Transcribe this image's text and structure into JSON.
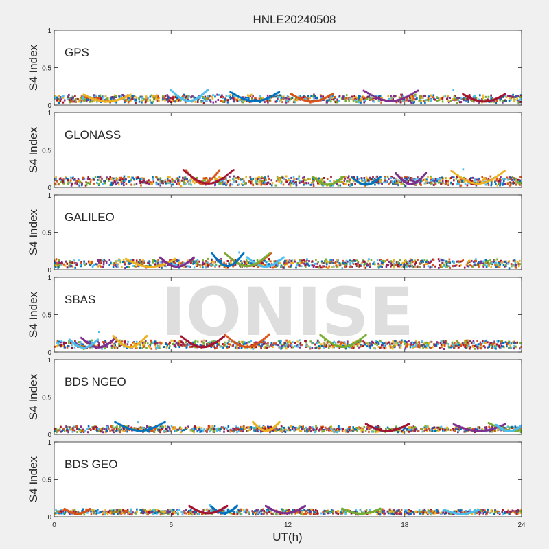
{
  "figure": {
    "title": "HNLE20240508",
    "xlabel": "UT(h)",
    "watermark": "IONISE"
  },
  "colors": {
    "background": "#f0f0f0",
    "axes_bg": "#ffffff",
    "axis": "#262626",
    "watermark": "#dedede",
    "series": [
      "#0072BD",
      "#D95319",
      "#EDB120",
      "#7E2F8E",
      "#77AC30",
      "#4DBEEE",
      "#A2142F"
    ]
  },
  "chart_data": [
    {
      "type": "scatter",
      "panel_label": "GPS",
      "ylabel": "S4 Index",
      "xlim": [
        0,
        24
      ],
      "ylim": [
        0,
        1
      ],
      "xticks": [
        "0",
        "6",
        "12",
        "18",
        "24"
      ],
      "yticks": [
        "0",
        "0.5",
        "1"
      ],
      "typical_s4_range": [
        0.03,
        0.22
      ],
      "peak_s4": {
        "x": 20.5,
        "y": 0.2
      },
      "grid": false
    },
    {
      "type": "scatter",
      "panel_label": "GLONASS",
      "ylabel": "S4 Index",
      "xlim": [
        0,
        24
      ],
      "ylim": [
        0,
        1
      ],
      "xticks": [
        "0",
        "6",
        "12",
        "18",
        "24"
      ],
      "yticks": [
        "0",
        "0.5",
        "1"
      ],
      "typical_s4_range": [
        0.02,
        0.25
      ],
      "peak_s4": {
        "x": 21.0,
        "y": 0.24
      },
      "grid": false
    },
    {
      "type": "scatter",
      "panel_label": "GALILEO",
      "ylabel": "S4 Index",
      "xlim": [
        0,
        24
      ],
      "ylim": [
        0,
        1
      ],
      "xticks": [
        "0",
        "6",
        "12",
        "18",
        "24"
      ],
      "yticks": [
        "0",
        "0.5",
        "1"
      ],
      "typical_s4_range": [
        0.02,
        0.24
      ],
      "peak_s4": {
        "x": 9.5,
        "y": 0.23
      },
      "grid": false
    },
    {
      "type": "scatter",
      "panel_label": "SBAS",
      "ylabel": "S4 Index",
      "xlim": [
        0,
        24
      ],
      "ylim": [
        0,
        1
      ],
      "xticks": [
        "0",
        "6",
        "12",
        "18",
        "24"
      ],
      "yticks": [
        "0",
        "0.5",
        "1"
      ],
      "typical_s4_range": [
        0.04,
        0.25
      ],
      "peak_s4": {
        "x": 2.3,
        "y": 0.27
      },
      "grid": false
    },
    {
      "type": "scatter",
      "panel_label": "BDS NGEO",
      "ylabel": "S4 Index",
      "xlim": [
        0,
        24
      ],
      "ylim": [
        0,
        1
      ],
      "xticks": [
        "0",
        "6",
        "12",
        "18",
        "24"
      ],
      "yticks": [
        "0",
        "0.5",
        "1"
      ],
      "typical_s4_range": [
        0.03,
        0.17
      ],
      "peak_s4": {
        "x": 4.3,
        "y": 0.16
      },
      "grid": false
    },
    {
      "type": "scatter",
      "panel_label": "BDS GEO",
      "ylabel": "S4 Index",
      "xlim": [
        0,
        24
      ],
      "ylim": [
        0,
        1
      ],
      "xticks": [
        "0",
        "6",
        "12",
        "18",
        "24"
      ],
      "yticks": [
        "0",
        "0.5",
        "1"
      ],
      "typical_s4_range": [
        0.03,
        0.15
      ],
      "peak_s4": {
        "x": 8.0,
        "y": 0.16
      },
      "grid": false
    }
  ]
}
